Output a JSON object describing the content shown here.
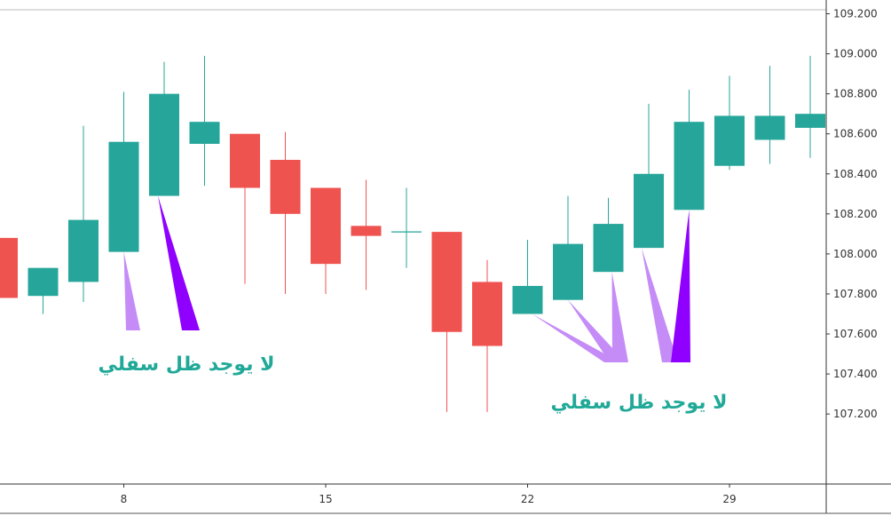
{
  "chart_data": {
    "type": "candlestick",
    "bull_color": "#26a69a",
    "bear_color": "#ef5350",
    "arrow_colors": {
      "light": "#c58cf7",
      "dark": "#8f00ff"
    },
    "ylim": [
      106.85,
      109.22
    ],
    "y_ticks": [
      "107.200",
      "107.400",
      "107.600",
      "107.800",
      "108.000",
      "108.200",
      "108.400",
      "108.600",
      "108.800",
      "109.000",
      "109.200"
    ],
    "x_ticks": [
      {
        "label": "8",
        "index": 3
      },
      {
        "label": "15",
        "index": 8
      },
      {
        "label": "22",
        "index": 13
      },
      {
        "label": "29",
        "index": 18
      }
    ],
    "candles": [
      {
        "index": 0,
        "open": 108.08,
        "high": 108.08,
        "low": 107.78,
        "close": 107.78
      },
      {
        "index": 1,
        "open": 107.79,
        "high": 107.93,
        "low": 107.7,
        "close": 107.93
      },
      {
        "index": 2,
        "open": 107.86,
        "high": 108.64,
        "low": 107.76,
        "close": 108.17
      },
      {
        "index": 3,
        "open": 108.01,
        "high": 108.81,
        "low": 108.01,
        "close": 108.56
      },
      {
        "index": 4,
        "open": 108.29,
        "high": 108.96,
        "low": 108.29,
        "close": 108.8
      },
      {
        "index": 5,
        "open": 108.55,
        "high": 108.99,
        "low": 108.34,
        "close": 108.66
      },
      {
        "index": 6,
        "open": 108.6,
        "high": 108.6,
        "low": 107.85,
        "close": 108.33
      },
      {
        "index": 7,
        "open": 108.47,
        "high": 108.61,
        "low": 107.8,
        "close": 108.2
      },
      {
        "index": 8,
        "open": 108.33,
        "high": 108.33,
        "low": 107.8,
        "close": 107.95
      },
      {
        "index": 9,
        "open": 108.14,
        "high": 108.37,
        "low": 107.82,
        "close": 108.09
      },
      {
        "index": 10,
        "open": 108.11,
        "high": 108.33,
        "low": 107.93,
        "close": 108.11
      },
      {
        "index": 11,
        "open": 108.11,
        "high": 108.11,
        "low": 107.21,
        "close": 107.61
      },
      {
        "index": 12,
        "open": 107.86,
        "high": 107.97,
        "low": 107.21,
        "close": 107.54
      },
      {
        "index": 13,
        "open": 107.7,
        "high": 108.07,
        "low": 107.7,
        "close": 107.84
      },
      {
        "index": 14,
        "open": 107.77,
        "high": 108.29,
        "low": 107.77,
        "close": 108.05
      },
      {
        "index": 15,
        "open": 107.91,
        "high": 108.28,
        "low": 107.91,
        "close": 108.15
      },
      {
        "index": 16,
        "open": 108.03,
        "high": 108.75,
        "low": 108.03,
        "close": 108.4
      },
      {
        "index": 17,
        "open": 108.22,
        "high": 108.82,
        "low": 108.22,
        "close": 108.66
      },
      {
        "index": 18,
        "open": 108.44,
        "high": 108.89,
        "low": 108.42,
        "close": 108.69
      },
      {
        "index": 19,
        "open": 108.57,
        "high": 108.94,
        "low": 108.45,
        "close": 108.69
      },
      {
        "index": 20,
        "open": 108.63,
        "high": 108.99,
        "low": 108.48,
        "close": 108.7
      }
    ],
    "annotations": [
      {
        "text": "لا يوجد ظل سفلي",
        "candle_indexes": [
          3,
          4
        ]
      },
      {
        "text": "لا يوجد ظل سفلي",
        "candle_indexes": [
          13,
          14,
          15,
          16,
          17
        ]
      }
    ]
  }
}
